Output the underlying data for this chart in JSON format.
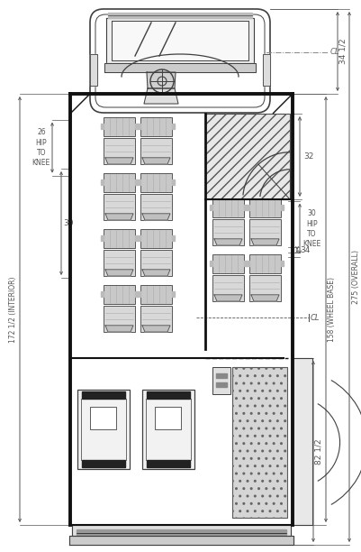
{
  "bg": "#ffffff",
  "lc": "#404040",
  "dc": "#111111",
  "dim_c": "#555555",
  "fig_w": 4.02,
  "fig_h": 6.12,
  "dpi": 100,
  "dim_overall": "275 (OVERALL)",
  "dim_wheelbase": "158 (WHEEL BASE)",
  "dim_interior": "172 1/2 (INTERIOR)",
  "dim_34half": "34 1/2",
  "dim_82half": "82 1/2",
  "dim_30_left": "30",
  "dim_26": "26",
  "dim_32": "32",
  "dim_34": "34",
  "dim_30_right": "30",
  "label_hip_knee_left": "26\nHIP\nTO\nKNEE",
  "label_hip_knee_right": "30\nHIP\nTO\nKNEE",
  "label_cl": "CL"
}
